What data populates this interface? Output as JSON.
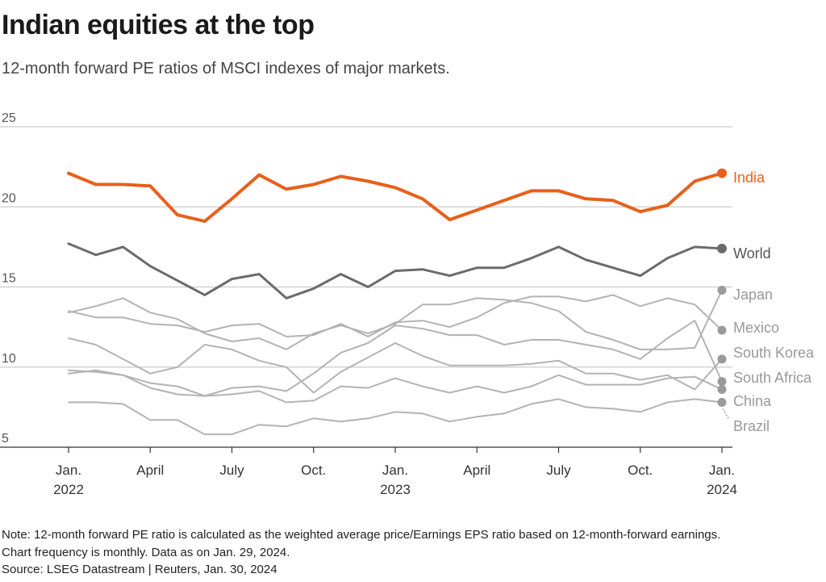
{
  "header": {
    "title": "Indian equities at the top",
    "subtitle": "12-month forward PE ratios of MSCI indexes of major markets."
  },
  "footer": {
    "note_line1": "Note: 12-month forward PE ratio is calculated as the weighted average price/Earnings EPS ratio based on 12-month-forward earnings.",
    "note_line2": "Chart frequency is monthly. Data as on Jan. 29, 2024.",
    "source": "Source: LSEG Datastream | Reuters, Jan. 30, 2024"
  },
  "colors": {
    "India": "#e8601c",
    "World": "#6b6b6b",
    "others": "#b3b3b3",
    "others_dot": "#9a9a9a",
    "gridline": "#cccccc",
    "axis": "#333333"
  },
  "chart_data": {
    "type": "line",
    "title": "Indian equities at the top",
    "subtitle": "12-month forward PE ratios of MSCI indexes of major markets.",
    "ylim": [
      5,
      25
    ],
    "yticks": [
      5,
      10,
      15,
      20,
      25
    ],
    "grid": true,
    "legend": "end-of-line labels",
    "x": [
      "2022-01",
      "2022-02",
      "2022-03",
      "2022-04",
      "2022-05",
      "2022-06",
      "2022-07",
      "2022-08",
      "2022-09",
      "2022-10",
      "2022-11",
      "2022-12",
      "2023-01",
      "2023-02",
      "2023-03",
      "2023-04",
      "2023-05",
      "2023-06",
      "2023-07",
      "2023-08",
      "2023-09",
      "2023-10",
      "2023-11",
      "2023-12",
      "2024-01"
    ],
    "xticks": [
      {
        "month": "Jan.",
        "year": "2022"
      },
      {
        "month": "April",
        "year": ""
      },
      {
        "month": "July",
        "year": ""
      },
      {
        "month": "Oct.",
        "year": ""
      },
      {
        "month": "Jan.",
        "year": "2023"
      },
      {
        "month": "April",
        "year": ""
      },
      {
        "month": "July",
        "year": ""
      },
      {
        "month": "Oct.",
        "year": ""
      },
      {
        "month": "Jan.",
        "year": "2024"
      }
    ],
    "series": [
      {
        "name": "India",
        "values": [
          22.1,
          21.4,
          21.4,
          21.3,
          19.5,
          19.1,
          20.5,
          22.0,
          21.1,
          21.4,
          21.9,
          21.6,
          21.2,
          20.5,
          19.2,
          19.8,
          20.4,
          21.0,
          21.0,
          20.5,
          20.4,
          19.7,
          20.1,
          21.6,
          22.1
        ]
      },
      {
        "name": "World",
        "values": [
          17.7,
          17.0,
          17.5,
          16.3,
          15.4,
          14.5,
          15.5,
          15.8,
          14.3,
          14.9,
          15.8,
          15.0,
          16.0,
          16.1,
          15.7,
          16.2,
          16.2,
          16.8,
          17.5,
          16.7,
          16.2,
          15.7,
          16.8,
          17.5,
          17.4
        ]
      },
      {
        "name": "Japan",
        "values": [
          13.4,
          13.8,
          14.3,
          13.4,
          13.0,
          12.1,
          11.6,
          11.8,
          11.1,
          12.1,
          12.6,
          12.1,
          12.7,
          13.9,
          13.9,
          14.3,
          14.2,
          14.0,
          13.5,
          12.2,
          11.7,
          11.1,
          11.1,
          11.2,
          14.8
        ]
      },
      {
        "name": "Mexico",
        "values": [
          13.5,
          13.1,
          13.1,
          12.7,
          12.6,
          12.2,
          12.6,
          12.7,
          11.9,
          12.0,
          12.7,
          11.9,
          12.8,
          12.9,
          12.5,
          13.1,
          14.0,
          14.4,
          14.4,
          14.1,
          14.5,
          13.8,
          14.3,
          13.9,
          12.3
        ]
      },
      {
        "name": "South Korea",
        "values": [
          11.8,
          11.4,
          10.5,
          9.6,
          10.0,
          11.4,
          11.1,
          10.4,
          10.0,
          8.4,
          9.7,
          10.6,
          11.5,
          10.7,
          10.1,
          10.1,
          10.1,
          10.2,
          10.4,
          9.6,
          9.6,
          9.2,
          9.5,
          8.6,
          10.5
        ]
      },
      {
        "name": "South Africa",
        "values": [
          9.6,
          9.8,
          9.5,
          9.0,
          8.8,
          8.2,
          8.7,
          8.8,
          8.5,
          9.6,
          10.9,
          11.5,
          12.6,
          12.4,
          12.0,
          12.0,
          11.4,
          11.7,
          11.7,
          11.4,
          11.1,
          10.5,
          11.8,
          12.9,
          9.1
        ]
      },
      {
        "name": "China",
        "values": [
          9.8,
          9.7,
          9.5,
          8.7,
          8.3,
          8.2,
          8.3,
          8.5,
          7.8,
          7.9,
          8.8,
          8.7,
          9.3,
          8.8,
          8.4,
          8.8,
          8.4,
          8.8,
          9.5,
          8.9,
          8.9,
          8.9,
          9.3,
          9.4,
          8.6
        ]
      },
      {
        "name": "Brazil",
        "values": [
          7.8,
          7.8,
          7.7,
          6.7,
          6.7,
          5.8,
          5.8,
          6.4,
          6.3,
          6.8,
          6.6,
          6.8,
          7.2,
          7.1,
          6.6,
          6.9,
          7.1,
          7.7,
          8.0,
          7.5,
          7.4,
          7.2,
          7.8,
          8.0,
          7.8
        ]
      }
    ]
  }
}
